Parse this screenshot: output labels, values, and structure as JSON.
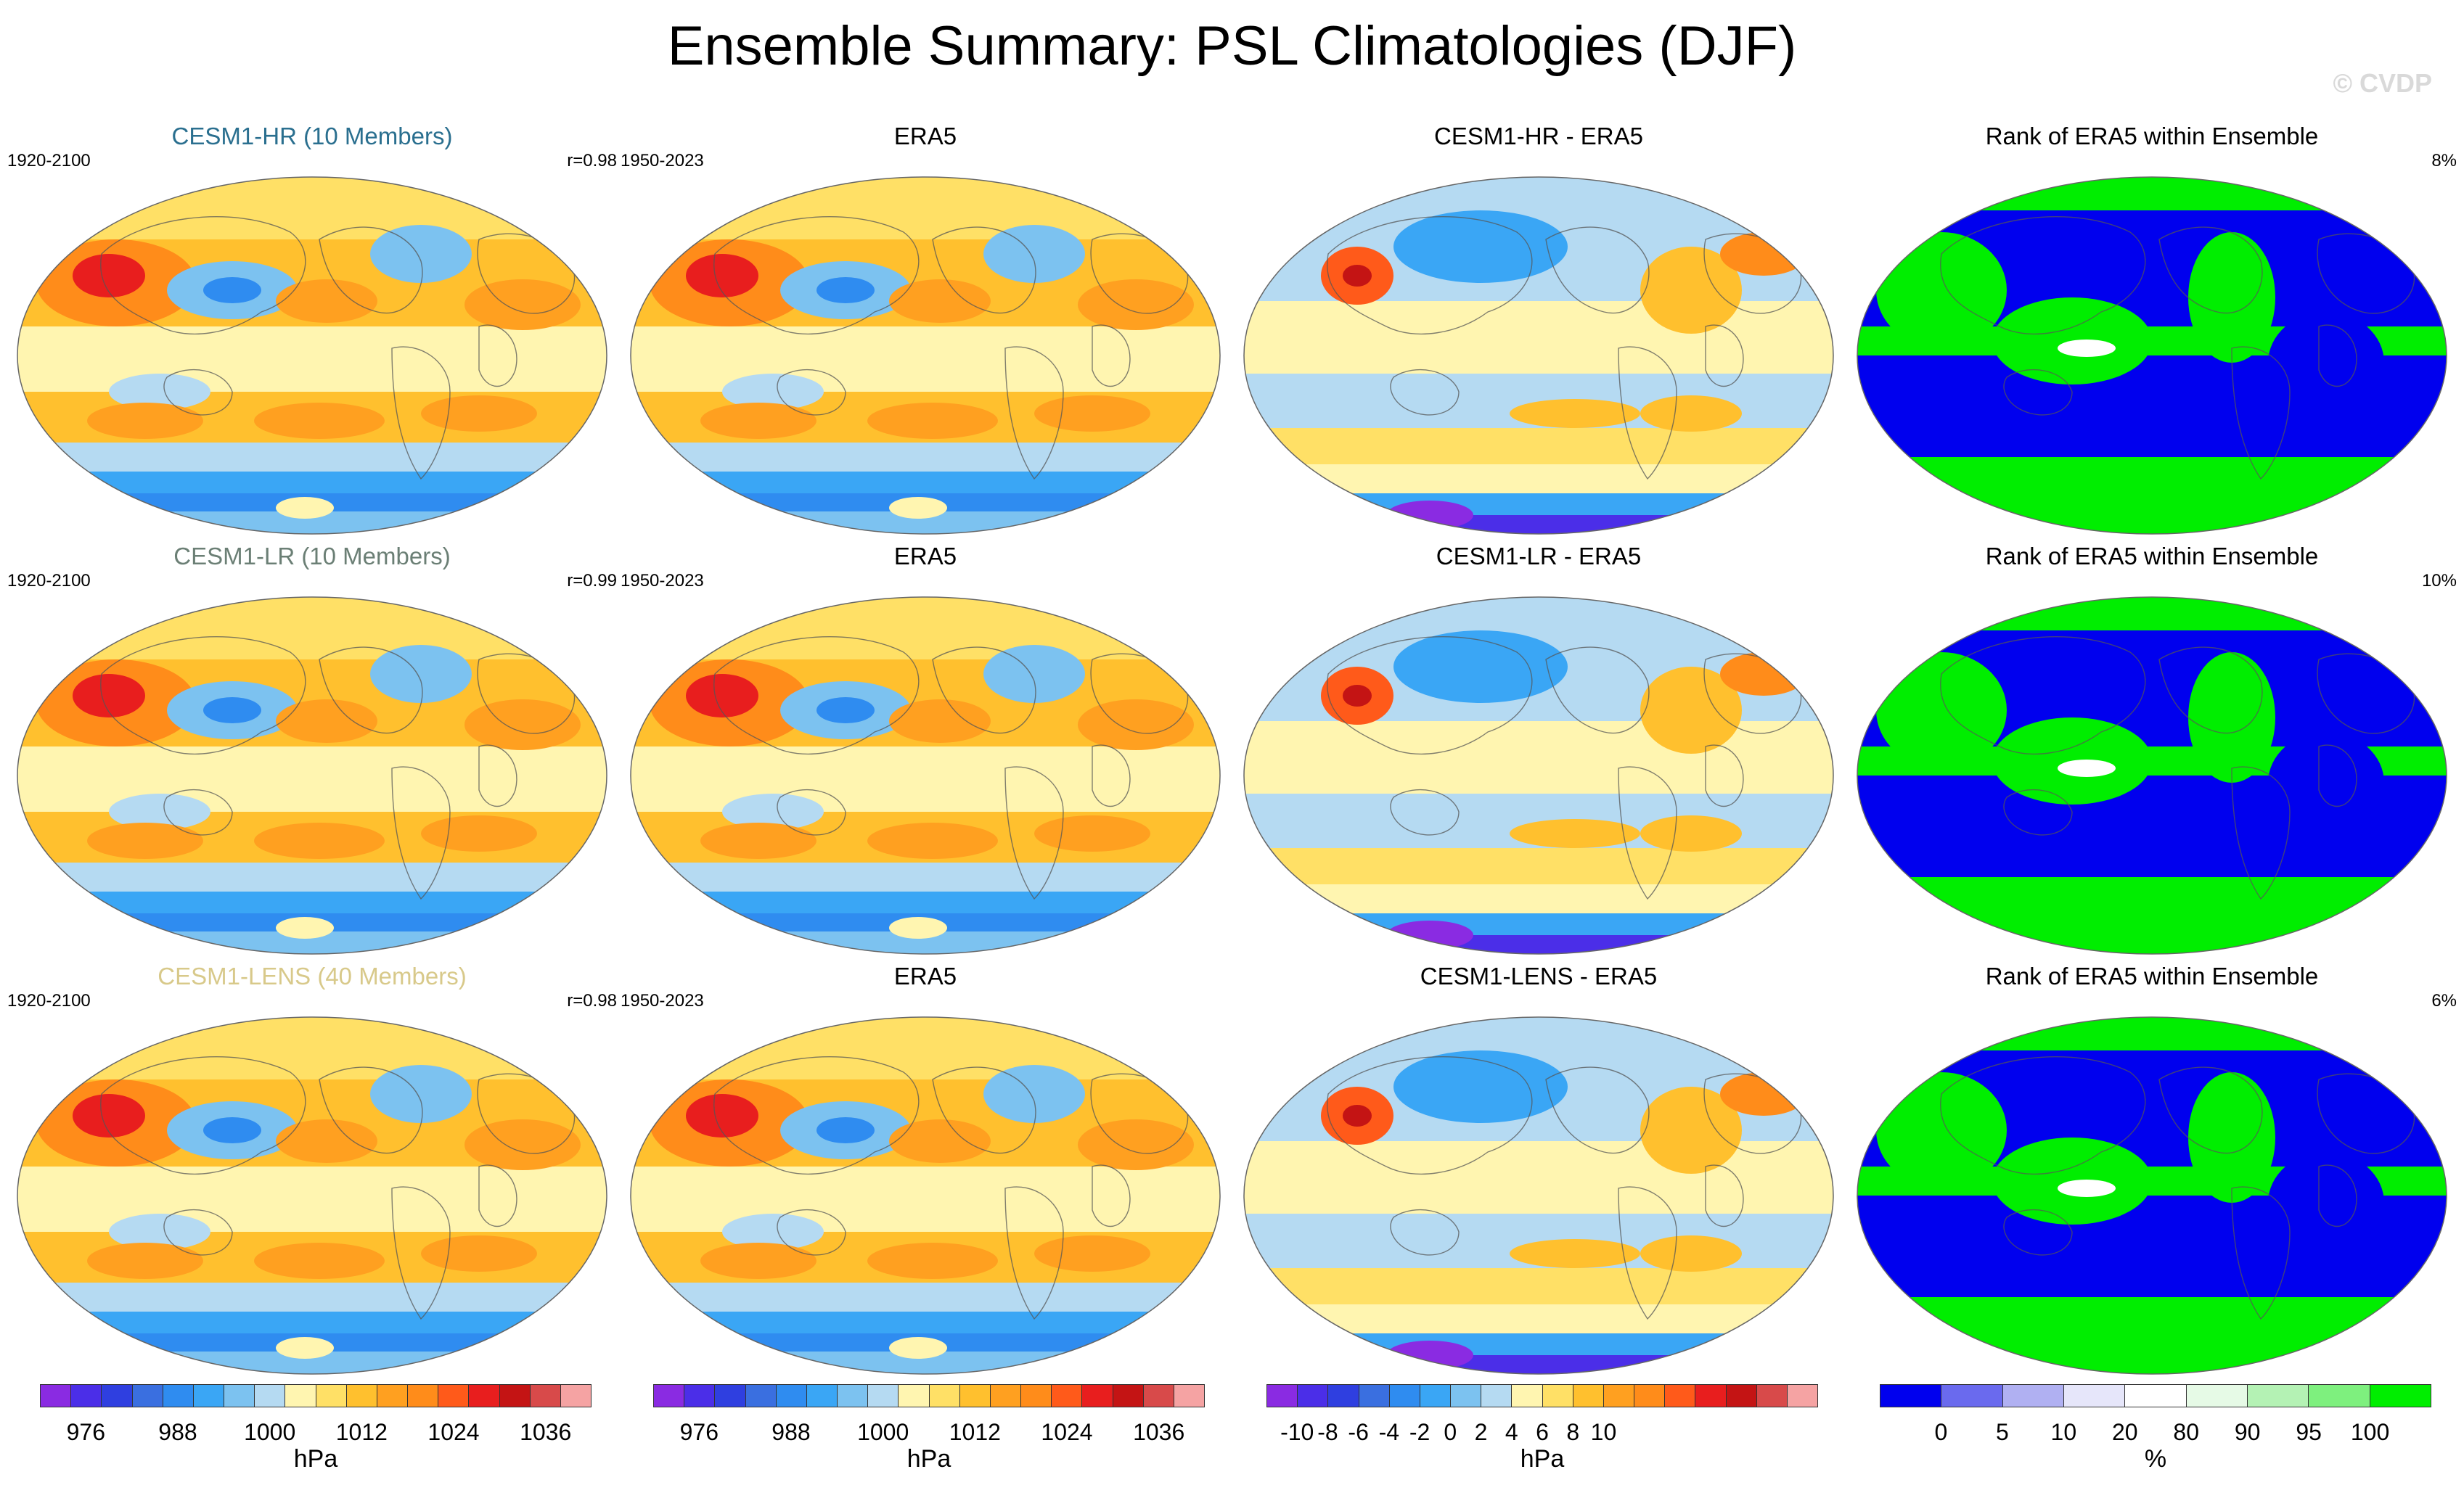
{
  "title": "Ensemble Summary: PSL Climatologies (DJF)",
  "watermark": "© CVDP",
  "rows": [
    {
      "ensemble_title": "CESM1-HR (10 Members)",
      "ensemble_title_color": "#2a6f8f",
      "ensemble_period": "1920-2100",
      "correlation": "r=0.98",
      "obs_title": "ERA5",
      "obs_period": "1950-2023",
      "diff_title": "CESM1-HR - ERA5",
      "rank_title": "Rank of ERA5 within Ensemble",
      "rank_pct": "8%"
    },
    {
      "ensemble_title": "CESM1-LR (10 Members)",
      "ensemble_title_color": "#6b7f75",
      "ensemble_period": "1920-2100",
      "correlation": "r=0.99",
      "obs_title": "ERA5",
      "obs_period": "1950-2023",
      "diff_title": "CESM1-LR - ERA5",
      "rank_title": "Rank of ERA5 within Ensemble",
      "rank_pct": "10%"
    },
    {
      "ensemble_title": "CESM1-LENS (40 Members)",
      "ensemble_title_color": "#d8c98a",
      "ensemble_period": "1920-2100",
      "correlation": "r=0.98",
      "obs_title": "ERA5",
      "obs_period": "1950-2023",
      "diff_title": "CESM1-LENS - ERA5",
      "rank_title": "Rank of ERA5 within Ensemble",
      "rank_pct": "6%"
    }
  ],
  "colorbars": [
    {
      "unit": "hPa",
      "ticks": [
        "976",
        "988",
        "1000",
        "1012",
        "1024",
        "1036"
      ],
      "tick_index": [
        1.5,
        4.5,
        7.5,
        10.5,
        13.5,
        16.5
      ],
      "colors": [
        "#8a2be2",
        "#4b2ee8",
        "#2f3fe0",
        "#3a6fe0",
        "#2f8cf0",
        "#3aa6f5",
        "#7cc2f0",
        "#b5daf2",
        "#fff5b0",
        "#ffe066",
        "#ffc02e",
        "#ffa020",
        "#ff8c1a",
        "#ff5a1a",
        "#e81e1e",
        "#c41414",
        "#d84a4a",
        "#f5a3a3"
      ]
    },
    {
      "unit": "hPa",
      "ticks": [
        "976",
        "988",
        "1000",
        "1012",
        "1024",
        "1036"
      ],
      "tick_index": [
        1.5,
        4.5,
        7.5,
        10.5,
        13.5,
        16.5
      ],
      "colors": [
        "#8a2be2",
        "#4b2ee8",
        "#2f3fe0",
        "#3a6fe0",
        "#2f8cf0",
        "#3aa6f5",
        "#7cc2f0",
        "#b5daf2",
        "#fff5b0",
        "#ffe066",
        "#ffc02e",
        "#ffa020",
        "#ff8c1a",
        "#ff5a1a",
        "#e81e1e",
        "#c41414",
        "#d84a4a",
        "#f5a3a3"
      ]
    },
    {
      "unit": "hPa",
      "ticks": [
        "-10",
        "-8",
        "-6",
        "-4",
        "-2",
        "0",
        "2",
        "4",
        "6",
        "8",
        "10"
      ],
      "tick_index": [
        1,
        2,
        3,
        4,
        5,
        6,
        7,
        8,
        9,
        10,
        11
      ],
      "colors": [
        "#8a2be2",
        "#4b2ee8",
        "#2f3fe0",
        "#3a6fe0",
        "#2f8cf0",
        "#3aa6f5",
        "#7cc2f0",
        "#b5daf2",
        "#fff5b0",
        "#ffe066",
        "#ffc02e",
        "#ffa020",
        "#ff8c1a",
        "#ff5a1a",
        "#e81e1e",
        "#c41414",
        "#d84a4a",
        "#f5a3a3"
      ]
    },
    {
      "unit": "%",
      "ticks": [
        "0",
        "5",
        "10",
        "20",
        "80",
        "90",
        "95",
        "100"
      ],
      "tick_index": [
        1,
        2,
        3,
        4,
        5,
        6,
        7,
        8
      ],
      "colors": [
        "#0000ee",
        "#6a6aee",
        "#b0b0f2",
        "#e6e6fa",
        "#ffffff",
        "#e6fae6",
        "#b4f2b4",
        "#7ef07e",
        "#00ee00"
      ]
    }
  ]
}
